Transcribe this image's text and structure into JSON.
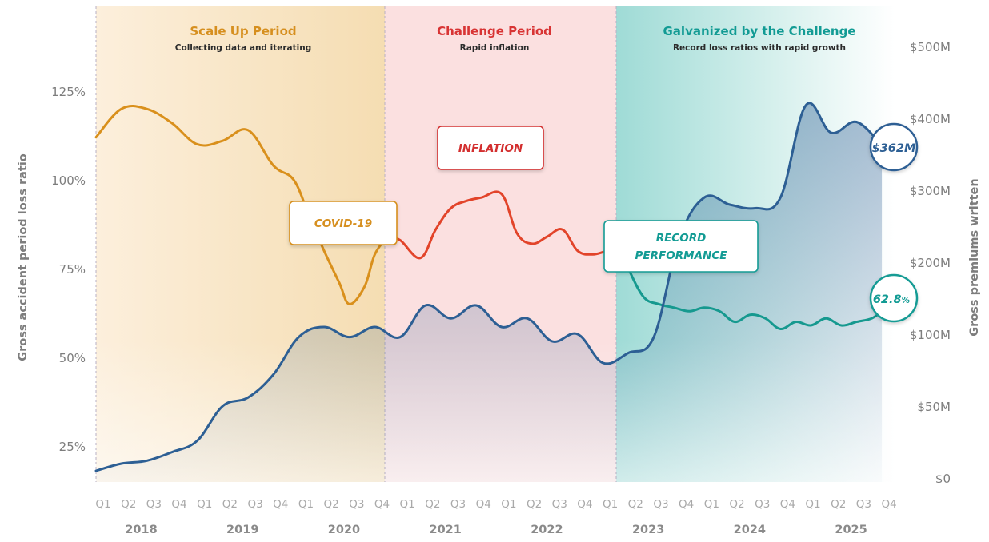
{
  "chart_data": {
    "type": "line",
    "periods": [
      {
        "title": "Scale Up Period",
        "subtitle": "Collecting data and iterating",
        "color": "#d68f1f",
        "start_index": 0,
        "end_index": 11.5
      },
      {
        "title": "Challenge Period",
        "subtitle": "Rapid inflation",
        "color": "#d83434",
        "start_index": 11.5,
        "end_index": 20.75
      },
      {
        "title": "Galvanized by the Challenge",
        "subtitle": "Record loss ratios with rapid growth",
        "color": "#129b94",
        "start_index": 20.75,
        "end_index": 32
      }
    ],
    "x_quarters": [
      "Q1",
      "Q2",
      "Q3",
      "Q4",
      "Q1",
      "Q2",
      "Q3",
      "Q4",
      "Q1",
      "Q2",
      "Q3",
      "Q4",
      "Q1",
      "Q2",
      "Q3",
      "Q4",
      "Q1",
      "Q2",
      "Q3",
      "Q4",
      "Q1",
      "Q2",
      "Q3",
      "Q4",
      "Q1",
      "Q2",
      "Q3",
      "Q4",
      "Q1",
      "Q2",
      "Q3",
      "Q4"
    ],
    "x_years": [
      "2018",
      "2019",
      "2020",
      "2021",
      "2022",
      "2023",
      "2024",
      "2025"
    ],
    "y_left": {
      "label": "Gross accident period loss ratio",
      "ticks": [
        "25%",
        "50%",
        "75%",
        "100%",
        "125%"
      ],
      "tick_values": [
        25,
        50,
        75,
        100,
        125
      ],
      "range": [
        15,
        150
      ]
    },
    "y_right": {
      "label": "Gross premiums written",
      "ticks": [
        "$0",
        "$50M",
        "$100M",
        "$200M",
        "$300M",
        "$400M",
        "$500M"
      ],
      "tick_values": [
        0,
        50,
        100,
        200,
        300,
        400,
        500
      ]
    },
    "series": [
      {
        "name": "Gross accident period loss ratio",
        "axis": "left",
        "x": [
          0,
          1,
          2,
          3,
          4,
          5,
          6,
          7,
          7.8,
          8.4,
          9,
          9.6,
          10,
          10.6,
          11,
          11.5,
          12,
          12.8,
          13.4,
          14,
          14.6,
          15.2,
          16,
          16.6,
          17.2,
          17.8,
          18.4,
          19,
          19.6,
          20.2,
          20.75,
          21,
          21.6,
          22.2,
          22.8,
          23.4,
          24,
          24.6,
          25.2,
          25.8,
          26.4,
          27,
          27.6,
          28.2,
          28.8,
          29.4,
          30,
          30.6,
          31
        ],
        "values": [
          112,
          120,
          120,
          116,
          110,
          111,
          114,
          104,
          100,
          90,
          80,
          71,
          65,
          70,
          79,
          84,
          83,
          78,
          86,
          92,
          94,
          95,
          96,
          85,
          82,
          84,
          86,
          80,
          79,
          80,
          80,
          75,
          67,
          65,
          64,
          63,
          64,
          63,
          60,
          62,
          61,
          58,
          60,
          59,
          61,
          59,
          60,
          61,
          63
        ],
        "colors": {
          "scale_up": "#d9901c",
          "challenge": "#e2442a",
          "galvanized": "#16998f"
        }
      },
      {
        "name": "Gross premiums written",
        "axis": "right",
        "unit": "$M",
        "x": [
          0,
          1,
          2,
          3,
          4,
          5,
          6,
          7,
          8,
          9,
          10,
          11,
          12,
          13,
          14,
          15,
          16,
          17,
          18,
          19,
          20,
          21,
          22,
          23,
          24,
          25,
          26,
          27,
          28,
          29,
          30,
          31
        ],
        "values": [
          5,
          10,
          12,
          18,
          26,
          50,
          56,
          72,
          98,
          110,
          98,
          110,
          98,
          140,
          122,
          140,
          110,
          122,
          95,
          100,
          80,
          87,
          98,
          232,
          290,
          280,
          275,
          290,
          418,
          380,
          395,
          362
        ],
        "color": "#2d5f94"
      }
    ],
    "annotations": [
      {
        "text": "COVID-19",
        "color": "#d68f1f"
      },
      {
        "text": "INFLATION",
        "color": "#d32f2f"
      },
      {
        "text": "RECORD",
        "text2": "PERFORMANCE",
        "color": "#129b94"
      }
    ],
    "end_labels": {
      "premiums": {
        "value_text": "$362M",
        "color": "#2d5f94"
      },
      "loss_ratio": {
        "value_text": "62.8",
        "unit_text": "%",
        "color": "#129b94"
      }
    }
  }
}
